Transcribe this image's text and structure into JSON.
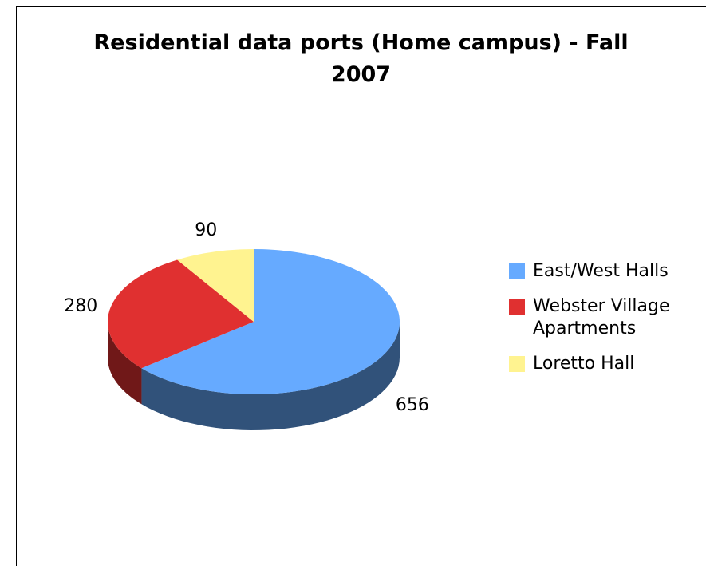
{
  "chart_data": {
    "type": "pie",
    "title": "Residential data ports (Home campus) - Fall 2007",
    "categories": [
      "East/West Halls",
      "Webster Village Apartments",
      "Loretto Hall"
    ],
    "values": [
      656,
      280,
      90
    ],
    "colors": [
      "#66aaff",
      "#e03030",
      "#fff390"
    ],
    "legend": "right"
  }
}
